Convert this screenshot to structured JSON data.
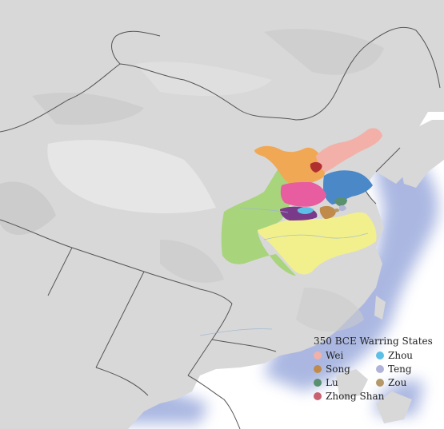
{
  "legend": {
    "title": "350 BCE Warring States",
    "items": [
      {
        "label": "Wei",
        "color": "#f2b0a8"
      },
      {
        "label": "Zhou",
        "color": "#5cc0e6"
      },
      {
        "label": "Song",
        "color": "#c08a4a"
      },
      {
        "label": "Teng",
        "color": "#b0b4d8"
      },
      {
        "label": "Lu",
        "color": "#5a9070"
      },
      {
        "label": "Zou",
        "color": "#b4986a"
      },
      {
        "label": "Zhong Shan",
        "color": "#c86070"
      }
    ]
  },
  "palette": {
    "ocean": "#ffffff",
    "land": "#d8d8d8",
    "coast_glow": "#8fa0d8",
    "border": "#555555",
    "qin_like": "#a8d47c",
    "chu_like": "#f2f08c",
    "zhao_like": "#f0a854",
    "han_like": "#e85ca0",
    "qi_like": "#4a88c8",
    "yan_like": "#f2b0a8",
    "purple_state": "#7a3a8a"
  }
}
